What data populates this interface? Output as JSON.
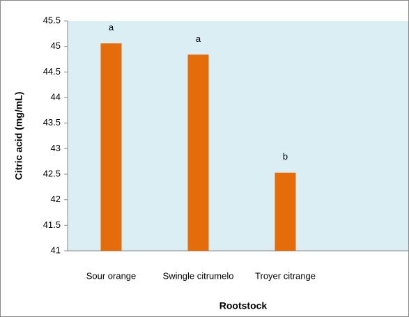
{
  "chart_data": {
    "type": "bar",
    "y_label": "Citric acid (mg/mL)",
    "x_label": "Rootstock",
    "categories": [
      "Sour orange",
      "Swingle citrumelo",
      "Troyer citrange"
    ],
    "values": [
      45.06,
      44.84,
      42.53
    ],
    "annotations": [
      "a",
      "a",
      "b"
    ],
    "color": "#e46c0a",
    "background": "#dbeef4",
    "ylim": [
      41,
      45.5
    ],
    "yticks": [
      41,
      41.5,
      42,
      42.5,
      43,
      43.5,
      44,
      44.5,
      45,
      45.5
    ]
  }
}
